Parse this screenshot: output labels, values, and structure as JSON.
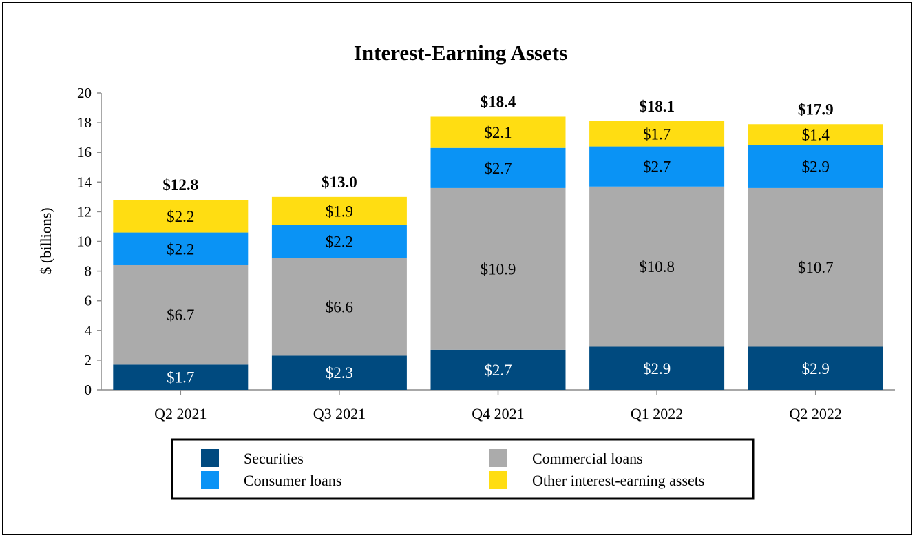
{
  "chart_data": {
    "type": "bar",
    "stacked": true,
    "title": "Interest-Earning Assets",
    "xlabel": "",
    "ylabel": "$ (billions)",
    "ylim": [
      0,
      20
    ],
    "yticks": [
      0,
      2,
      4,
      6,
      8,
      10,
      12,
      14,
      16,
      18,
      20
    ],
    "grid": false,
    "categories": [
      "Q2 2021",
      "Q3 2021",
      "Q4 2021",
      "Q1 2022",
      "Q2 2022"
    ],
    "series": [
      {
        "name": "Securities",
        "color": "#004A7F",
        "label_color": "#FFFFFF",
        "values": [
          1.7,
          2.3,
          2.7,
          2.9,
          2.9
        ],
        "labels": [
          "$1.7",
          "$2.3",
          "$2.7",
          "$2.9",
          "$2.9"
        ]
      },
      {
        "name": "Commercial loans",
        "color": "#ABABAB",
        "label_color": "#000000",
        "values": [
          6.7,
          6.6,
          10.9,
          10.8,
          10.7
        ],
        "labels": [
          "$6.7",
          "$6.6",
          "$10.9",
          "$10.8",
          "$10.7"
        ]
      },
      {
        "name": "Consumer loans",
        "color": "#0A93F5",
        "label_color": "#000000",
        "values": [
          2.2,
          2.2,
          2.7,
          2.7,
          2.9
        ],
        "labels": [
          "$2.2",
          "$2.2",
          "$2.7",
          "$2.7",
          "$2.9"
        ]
      },
      {
        "name": "Other interest-earning assets",
        "color": "#FFDD12",
        "label_color": "#000000",
        "values": [
          2.2,
          1.9,
          2.1,
          1.7,
          1.4
        ],
        "labels": [
          "$2.2",
          "$1.9",
          "$2.1",
          "$1.7",
          "$1.4"
        ]
      }
    ],
    "totals": [
      12.8,
      13.0,
      18.4,
      18.1,
      17.9
    ],
    "total_labels": [
      "$12.8",
      "$13.0",
      "$18.4",
      "$18.1",
      "$17.9"
    ],
    "legend": {
      "placement": "bottom",
      "order": [
        "Securities",
        "Commercial loans",
        "Consumer loans",
        "Other interest-earning assets"
      ]
    }
  }
}
